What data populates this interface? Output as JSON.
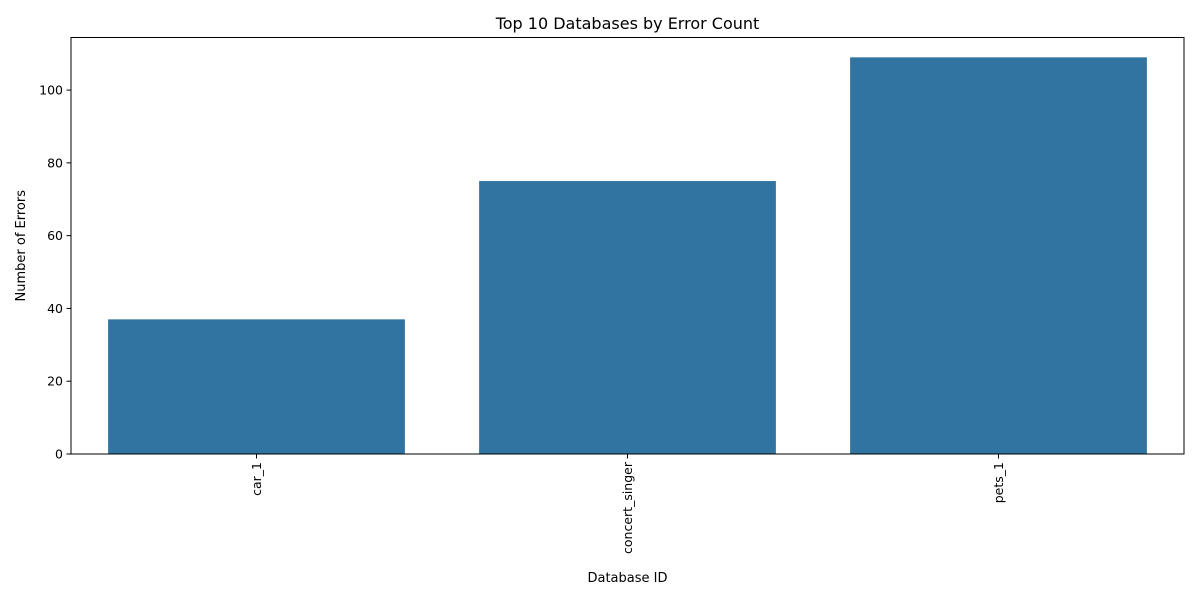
{
  "colors": {
    "bar": "#3274a1",
    "axis": "#000000",
    "background": "#ffffff"
  },
  "chart_data": {
    "type": "bar",
    "title": "Top 10 Databases by Error Count",
    "xlabel": "Database ID",
    "ylabel": "Number of Errors",
    "categories": [
      "car_1",
      "concert_singer",
      "pets_1"
    ],
    "values": [
      37,
      75,
      109
    ],
    "ylim": [
      0,
      114.45
    ],
    "yticks": [
      0,
      20,
      40,
      60,
      80,
      100
    ],
    "grid": false,
    "legend": "none",
    "xtick_rotation": "vertical"
  }
}
